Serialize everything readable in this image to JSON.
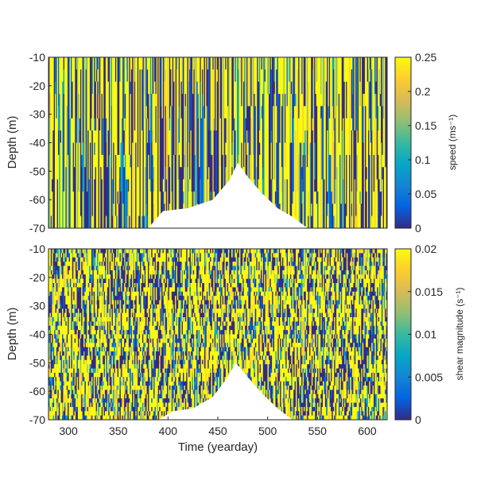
{
  "chart_data": [
    {
      "type": "heatmap",
      "title": "",
      "xlabel": "",
      "ylabel": "Depth (m)",
      "xlim": [
        280,
        620
      ],
      "ylim": [
        -70,
        -10
      ],
      "x_ticks": [],
      "y_ticks": [
        -10,
        -20,
        -30,
        -40,
        -50,
        -60,
        -70
      ],
      "y_tick_labels": [
        "-10",
        "-20",
        "-30",
        "-40",
        "-50",
        "-60",
        "-70"
      ],
      "colorbar": {
        "label": "speed (ms⁻¹)",
        "range": [
          0,
          0.25
        ],
        "ticks": [
          0,
          0.05,
          0.1,
          0.15,
          0.2,
          0.25
        ],
        "tick_labels": [
          "0",
          "0.05",
          "0.1",
          "0.15",
          "0.2",
          "0.25"
        ],
        "colormap": "parula"
      },
      "data_gap": {
        "description_visible": "white region (missing data) near the bottom",
        "profile": [
          {
            "x": 380,
            "top": -70
          },
          {
            "x": 395,
            "top": -64
          },
          {
            "x": 420,
            "top": -63
          },
          {
            "x": 445,
            "top": -60
          },
          {
            "x": 462,
            "top": -53
          },
          {
            "x": 470,
            "top": -47
          },
          {
            "x": 480,
            "top": -52
          },
          {
            "x": 495,
            "top": -58
          },
          {
            "x": 510,
            "top": -63
          },
          {
            "x": 525,
            "top": -66
          },
          {
            "x": 540,
            "top": -70
          }
        ]
      }
    },
    {
      "type": "heatmap",
      "title": "",
      "xlabel": "Time (yearday)",
      "ylabel": "Depth (m)",
      "xlim": [
        280,
        620
      ],
      "ylim": [
        -70,
        -10
      ],
      "x_ticks": [
        300,
        350,
        400,
        450,
        500,
        550,
        600
      ],
      "x_tick_labels": [
        "300",
        "350",
        "400",
        "450",
        "500",
        "550",
        "600"
      ],
      "y_ticks": [
        -10,
        -20,
        -30,
        -40,
        -50,
        -60,
        -70
      ],
      "y_tick_labels": [
        "-10",
        "-20",
        "-30",
        "-40",
        "-50",
        "-60",
        "-70"
      ],
      "colorbar": {
        "label": "shear magnitude (s⁻¹)",
        "range": [
          0,
          0.02
        ],
        "ticks": [
          0,
          0.005,
          0.01,
          0.015,
          0.02
        ],
        "tick_labels": [
          "0",
          "0.005",
          "0.01",
          "0.015",
          "0.02"
        ],
        "colormap": "parula"
      },
      "data_gap": {
        "description_visible": "white region (missing data) near the bottom",
        "profile": [
          {
            "x": 390,
            "top": -70
          },
          {
            "x": 405,
            "top": -67
          },
          {
            "x": 425,
            "top": -66
          },
          {
            "x": 445,
            "top": -62
          },
          {
            "x": 458,
            "top": -56
          },
          {
            "x": 468,
            "top": -50
          },
          {
            "x": 480,
            "top": -55
          },
          {
            "x": 495,
            "top": -61
          },
          {
            "x": 510,
            "top": -66
          },
          {
            "x": 525,
            "top": -70
          }
        ]
      }
    }
  ],
  "colors": {
    "parula_stops": [
      "#352a87",
      "#0363e1",
      "#1485d4",
      "#06a7c6",
      "#38b99e",
      "#92bf73",
      "#d9ba56",
      "#fcce2e",
      "#f9fb0e"
    ],
    "axis": "#262626",
    "gap": "#ffffff"
  }
}
